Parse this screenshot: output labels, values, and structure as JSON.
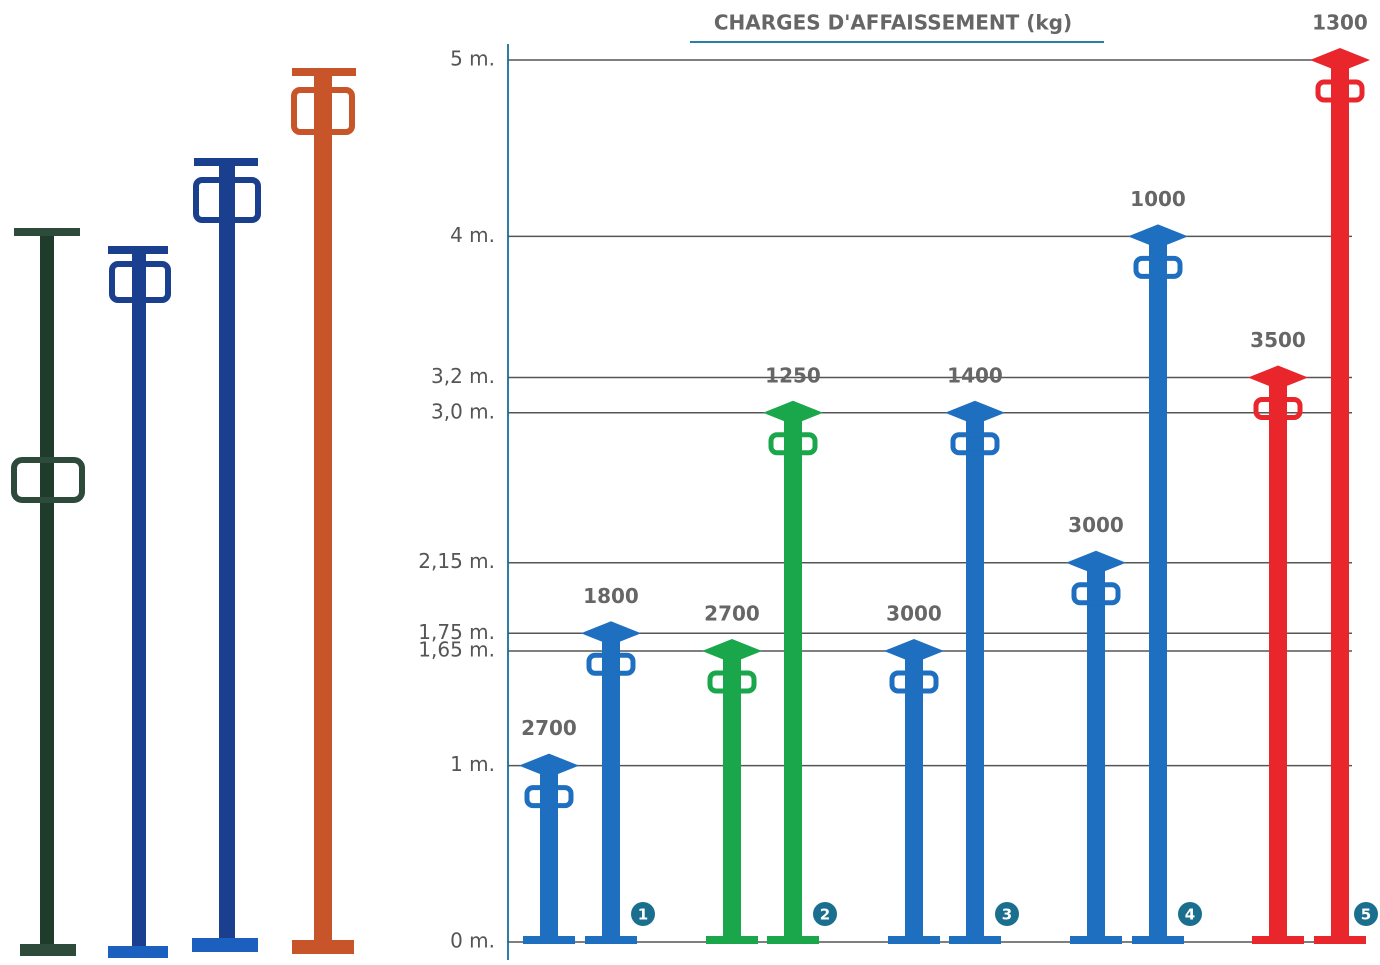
{
  "chart_data": {
    "type": "prop",
    "title": "CHARGES D'AFFAISSEMENT (kg)",
    "categories": [
      "1",
      "2",
      "3",
      "4",
      "5"
    ],
    "min_height": [
      1,
      1.65,
      1.65,
      2.15,
      3.2
    ],
    "max_height": [
      1.75,
      3.0,
      3.0,
      4,
      5
    ],
    "min_load": [
      2700,
      2700,
      3000,
      3000,
      3500
    ],
    "max_load": [
      1800,
      1250,
      1400,
      1000,
      1300
    ],
    "colors": [
      "#1f6fc0",
      "#1aa64a",
      "#1f6fc0",
      "#1f6fc0",
      "#e8262b"
    ],
    "ylim": [
      0,
      5
    ],
    "yticks": [
      {
        "value": 0,
        "label": "0 m."
      },
      {
        "value": 1,
        "label": "1 m."
      },
      {
        "value": 1.65,
        "label": "1,65 m."
      },
      {
        "value": 1.75,
        "label": "1,75 m."
      },
      {
        "value": 2.15,
        "label": "2,15 m."
      },
      {
        "value": 3.0,
        "label": "3,0 m."
      },
      {
        "value": 3.2,
        "label": "3,2 m."
      },
      {
        "value": 4,
        "label": "4 m."
      },
      {
        "value": 5,
        "label": "5 m."
      }
    ],
    "grid": true
  }
}
